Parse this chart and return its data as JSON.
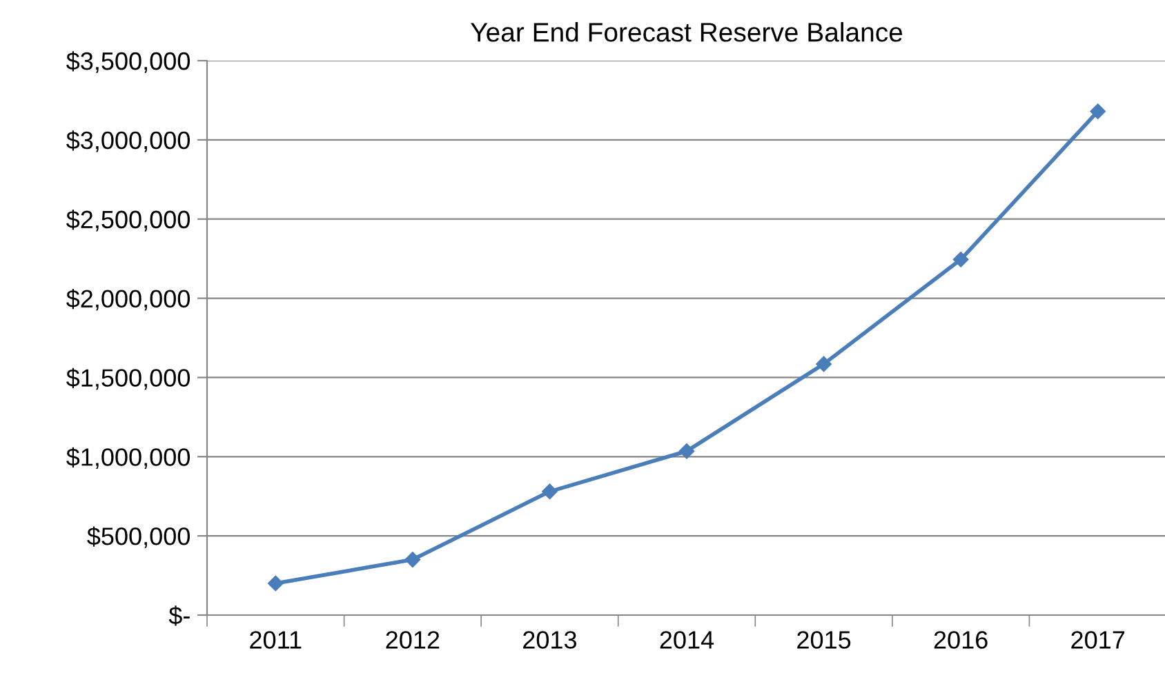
{
  "chart_data": {
    "type": "line",
    "title": "Year End Forecast Reserve Balance",
    "categories": [
      "2011",
      "2012",
      "2013",
      "2014",
      "2015",
      "2016",
      "2017"
    ],
    "series": [
      {
        "color": "#4a7ebb",
        "values": [
          200000,
          350000,
          780000,
          1035000,
          1585000,
          2245000,
          3180000
        ]
      }
    ],
    "ylim": [
      0,
      3500000
    ],
    "yticks": [
      {
        "value": 0,
        "label": "$-"
      },
      {
        "value": 500000,
        "label": "$500,000"
      },
      {
        "value": 1000000,
        "label": "$1,000,000"
      },
      {
        "value": 1500000,
        "label": "$1,500,000"
      },
      {
        "value": 2000000,
        "label": "$2,000,000"
      },
      {
        "value": 2500000,
        "label": "$2,500,000"
      },
      {
        "value": 3000000,
        "label": "$3,000,000"
      },
      {
        "value": 3500000,
        "label": "$3,500,000"
      }
    ],
    "grid": "y",
    "marker": "diamond",
    "line_style": "solid",
    "legend": false
  }
}
